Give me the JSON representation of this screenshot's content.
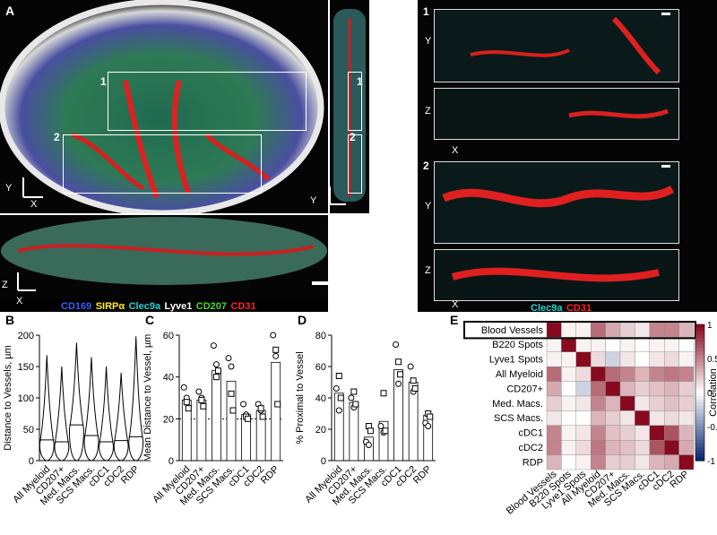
{
  "panels": {
    "A": "A",
    "B": "B",
    "C": "C",
    "D": "D",
    "E": "E"
  },
  "microscopy": {
    "inset_labels": [
      "1",
      "2"
    ],
    "axis_labels": {
      "x": "X",
      "y": "Y",
      "z": "Z"
    },
    "stain_legend": [
      {
        "text": "CD169",
        "color": "#3a5bff"
      },
      {
        "text": "SIRPα",
        "color": "#ffee22"
      },
      {
        "text": "Clec9a",
        "color": "#22d4d4"
      },
      {
        "text": "Lyve1",
        "color": "#ffffff"
      },
      {
        "text": "CD207",
        "color": "#44dd22"
      },
      {
        "text": "CD31",
        "color": "#ff2222"
      }
    ],
    "zoom_legend": [
      {
        "text": "Clec9a",
        "color": "#22d4d4"
      },
      {
        "text": "CD31",
        "color": "#ff2222"
      }
    ]
  },
  "chart_data": [
    {
      "id": "B",
      "type": "violin",
      "ylabel": "Distance to Vessels, µm",
      "ylim": [
        0,
        200
      ],
      "yticks": [
        0,
        50,
        100,
        150,
        200
      ],
      "categories": [
        "All Myeloid",
        "CD207+",
        "Med. Macs.",
        "SCS Macs.",
        "cDC1",
        "cDC2",
        "RDP"
      ],
      "medians": [
        33,
        30,
        57,
        40,
        30,
        32,
        38
      ],
      "maxes": [
        168,
        150,
        188,
        165,
        150,
        140,
        198
      ]
    },
    {
      "id": "C",
      "type": "bar",
      "ylabel": "Mean Distance to Vessel, µm",
      "ylim": [
        0,
        60
      ],
      "yticks": [
        0,
        20,
        40,
        60
      ],
      "reference_line": 20,
      "categories": [
        "All Myeloid",
        "CD207+",
        "Med. Macs.",
        "SCS Macs.",
        "cDC1",
        "cDC2",
        "RDP"
      ],
      "values": [
        29,
        29,
        43,
        38,
        22,
        24,
        47
      ],
      "points": [
        {
          "circles": [
            35,
            30
          ],
          "squares": [
            28,
            25
          ]
        },
        {
          "circles": [
            33,
            30
          ],
          "squares": [
            29,
            26
          ]
        },
        {
          "circles": [
            55,
            46
          ],
          "squares": [
            40,
            43
          ]
        },
        {
          "circles": [
            49,
            45
          ],
          "squares": [
            32,
            24
          ]
        },
        {
          "circles": [
            27,
            22
          ],
          "squares": [
            21,
            20
          ]
        },
        {
          "circles": [
            27,
            24
          ],
          "squares": [
            25,
            21
          ]
        },
        {
          "circles": [
            60,
            50
          ],
          "squares": [
            53,
            27
          ]
        }
      ]
    },
    {
      "id": "D",
      "type": "bar",
      "ylabel": "% Proximal to Vessel",
      "ylim": [
        0,
        80
      ],
      "yticks": [
        0,
        20,
        40,
        60,
        80
      ],
      "categories": [
        "All Myeloid",
        "CD207+",
        "Med. Macs.",
        "SCS Macs.",
        "cDC1",
        "cDC2",
        "RDP"
      ],
      "values": [
        43,
        37,
        15,
        25,
        58,
        50,
        29
      ],
      "points": [
        {
          "circles": [
            46,
            32
          ],
          "squares": [
            54,
            40
          ]
        },
        {
          "circles": [
            40,
            34
          ],
          "squares": [
            44,
            36
          ]
        },
        {
          "circles": [
            12,
            10
          ],
          "squares": [
            22,
            19
          ]
        },
        {
          "circles": [
            22,
            18
          ],
          "squares": [
            43,
            19
          ]
        },
        {
          "circles": [
            74,
            49
          ],
          "squares": [
            63,
            55
          ]
        },
        {
          "circles": [
            60,
            44
          ],
          "squares": [
            51,
            46
          ]
        },
        {
          "circles": [
            24,
            22
          ],
          "squares": [
            30,
            28
          ]
        }
      ]
    },
    {
      "id": "E",
      "type": "heatmap",
      "labels": [
        "Blood Vessels",
        "B220 Spots",
        "Lyve1 Spots",
        "All Myeloid",
        "CD207+",
        "Med. Macs.",
        "SCS Macs.",
        "cDC1",
        "cDC2",
        "RDP"
      ],
      "colorbar_label": "Correlation",
      "colorbar_ticks": [
        "1",
        "0.5",
        "0",
        "-0.5",
        "-1"
      ],
      "matrix": [
        [
          1.0,
          0.05,
          0.05,
          0.6,
          0.35,
          0.2,
          0.1,
          0.5,
          0.5,
          0.3
        ],
        [
          0.05,
          1.0,
          0.05,
          0.05,
          0.0,
          0.05,
          0.0,
          0.05,
          0.05,
          0.0
        ],
        [
          0.05,
          0.05,
          1.0,
          0.15,
          -0.2,
          0.1,
          0.0,
          0.1,
          0.15,
          0.05
        ],
        [
          0.6,
          0.05,
          0.15,
          1.0,
          0.6,
          0.5,
          0.3,
          0.5,
          0.55,
          0.5
        ],
        [
          0.35,
          0.0,
          -0.2,
          0.6,
          1.0,
          0.3,
          0.2,
          0.25,
          0.3,
          0.2
        ],
        [
          0.2,
          0.05,
          0.1,
          0.5,
          0.3,
          1.0,
          0.1,
          0.2,
          0.25,
          0.2
        ],
        [
          0.1,
          0.0,
          0.0,
          0.3,
          0.2,
          0.1,
          1.0,
          0.1,
          0.15,
          0.1
        ],
        [
          0.5,
          0.05,
          0.1,
          0.5,
          0.25,
          0.2,
          0.1,
          1.0,
          0.7,
          0.3
        ],
        [
          0.5,
          0.05,
          0.15,
          0.55,
          0.3,
          0.25,
          0.15,
          0.7,
          1.0,
          0.35
        ],
        [
          0.3,
          0.0,
          0.05,
          0.5,
          0.2,
          0.2,
          0.1,
          0.3,
          0.35,
          1.0
        ]
      ]
    }
  ]
}
